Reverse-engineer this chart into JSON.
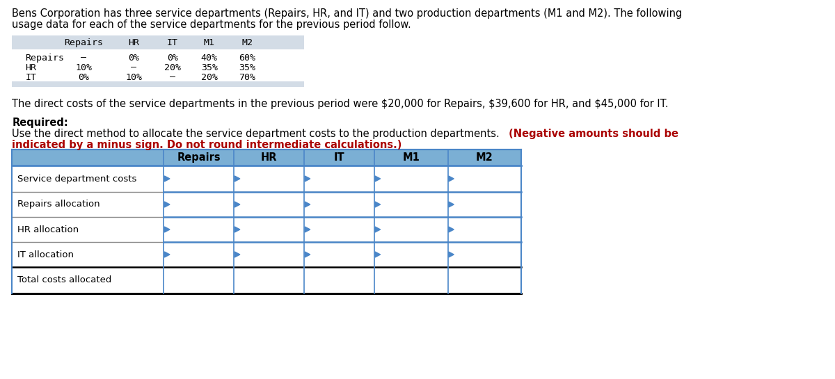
{
  "title_line1": "Bens Corporation has three service departments (Repairs, HR, and IT) and two production departments (M1 and M2). The following",
  "title_line2": "usage data for each of the service departments for the previous period follow.",
  "usage_table": {
    "col_headers": [
      "",
      "Repairs",
      "HR",
      "IT",
      "M1",
      "M2"
    ],
    "rows": [
      {
        "label": "Repairs",
        "values": [
          "–",
          "0%",
          "0%",
          "40%",
          "60%"
        ]
      },
      {
        "label": "HR",
        "values": [
          "10%",
          "–",
          "20%",
          "35%",
          "35%"
        ]
      },
      {
        "label": "IT",
        "values": [
          "0%",
          "10%",
          "–",
          "20%",
          "70%"
        ]
      }
    ]
  },
  "direct_cost_text": "The direct costs of the service departments in the previous period were $20,000 for Repairs, $39,600 for HR, and $45,000 for IT.",
  "required_label": "Required:",
  "instruction_normal": "Use the direct method to allocate the service department costs to the production departments.",
  "instruction_red_line1": " (Negative amounts should be",
  "instruction_red_line2": "indicated by a minus sign. Do not round intermediate calculations.)",
  "main_table_col_headers": [
    "Repairs",
    "HR",
    "IT",
    "M1",
    "M2"
  ],
  "main_table_rows": [
    "Service department costs",
    "Repairs allocation",
    "HR allocation",
    "IT allocation",
    "Total costs allocated"
  ],
  "header_bg_color": "#7bafd4",
  "table_border_color": "#4a86c8",
  "usage_header_bg": "#d3dce6",
  "usage_footer_bg": "#d3dce6",
  "bg_color": "#ffffff",
  "red_color": "#aa0000",
  "body_fontsize": 10.5,
  "mono_fontsize": 9.5,
  "table_header_fontsize": 10.5
}
